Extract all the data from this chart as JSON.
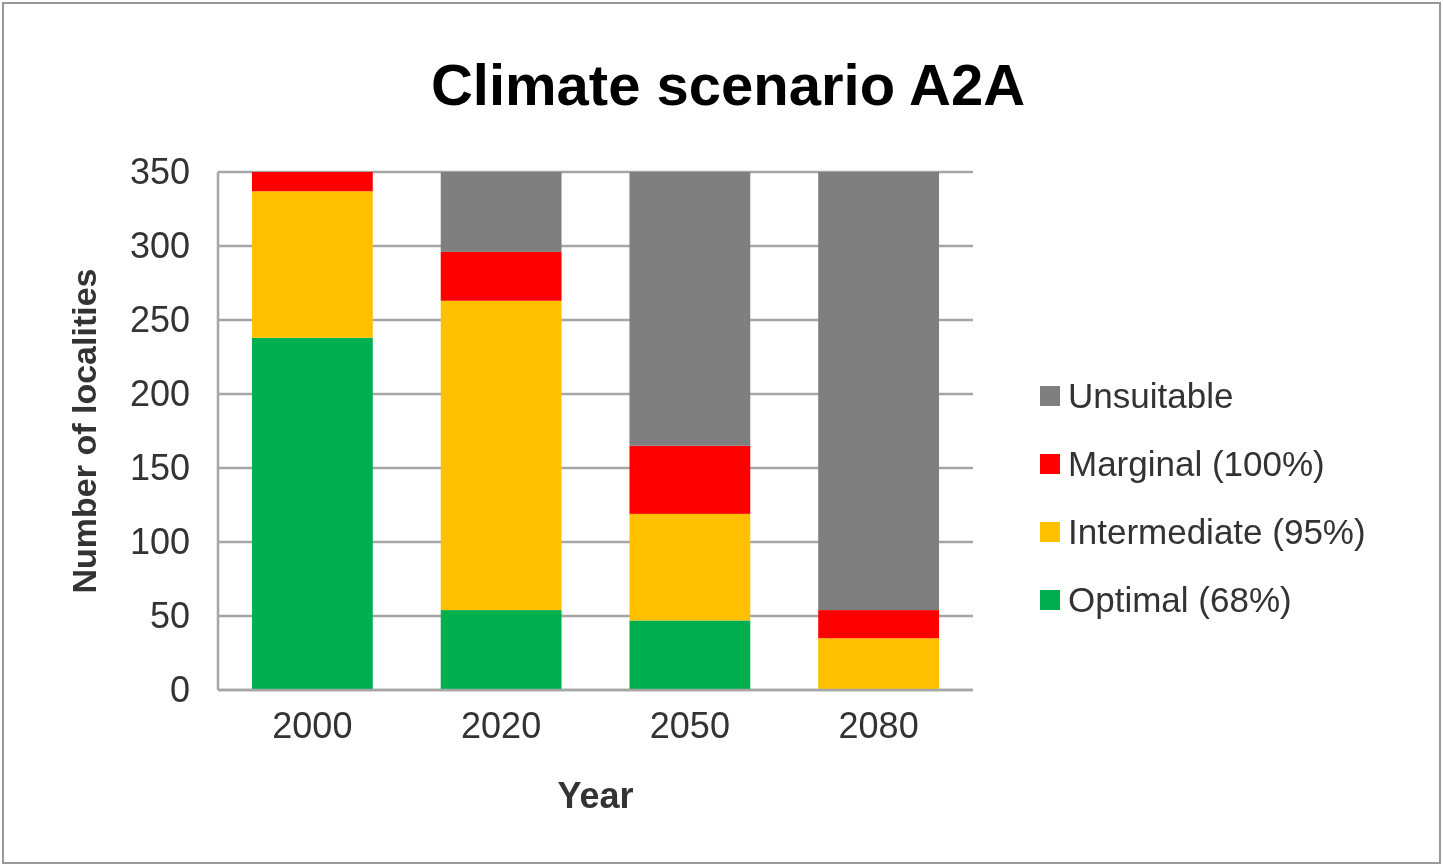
{
  "chart_data": {
    "type": "bar",
    "title": "Climate scenario A2A",
    "xlabel": "Year",
    "ylabel": "Number of localities",
    "categories": [
      "2000",
      "2020",
      "2050",
      "2080"
    ],
    "stacked": true,
    "series": [
      {
        "name": "Optimal (68%)",
        "color": "#00b050",
        "values": [
          238,
          54,
          47,
          0
        ]
      },
      {
        "name": "Intermediate (95%)",
        "color": "#ffc000",
        "values": [
          99,
          209,
          72,
          35
        ]
      },
      {
        "name": "Marginal (100%)",
        "color": "#ff0000",
        "values": [
          13,
          33,
          46,
          19
        ]
      },
      {
        "name": "Unsuitable",
        "color": "#7f7f7f",
        "values": [
          0,
          54,
          185,
          296
        ]
      }
    ],
    "ylim": [
      0,
      350
    ],
    "yticks": [
      0,
      50,
      100,
      150,
      200,
      250,
      300,
      350
    ],
    "grid": "y",
    "legend": "right"
  }
}
